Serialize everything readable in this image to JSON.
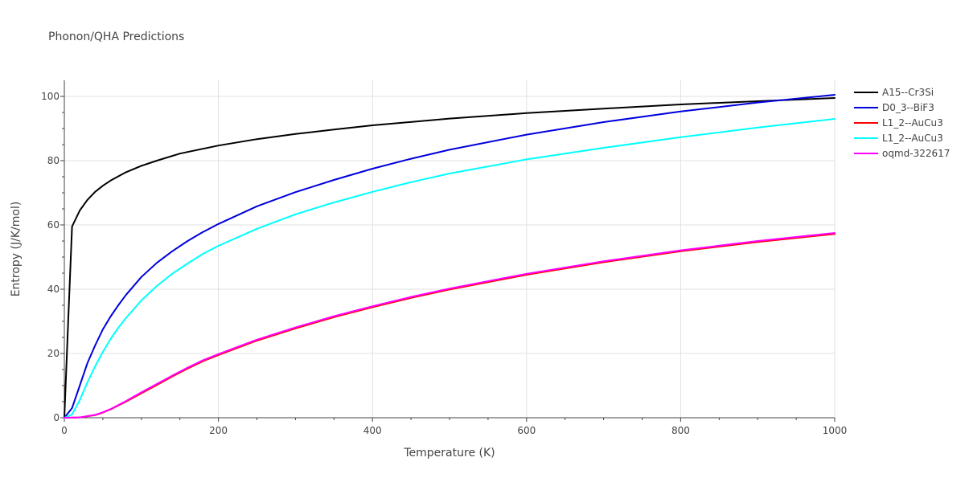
{
  "chart_data": {
    "type": "line",
    "title": "Phonon/QHA Predictions",
    "xlabel": "Temperature (K)",
    "ylabel": "Entropy (J/K/mol)",
    "xlim": [
      0,
      1000
    ],
    "ylim": [
      0,
      105
    ],
    "x_ticks": [
      0,
      200,
      400,
      600,
      800,
      1000
    ],
    "y_ticks": [
      0,
      20,
      40,
      60,
      80,
      100
    ],
    "grid": true,
    "legend_position": "top-right",
    "series": [
      {
        "name": "A15--Cr3Si",
        "color": "#000000",
        "x": [
          0,
          5,
          10,
          20,
          30,
          40,
          50,
          60,
          80,
          100,
          120,
          150,
          200,
          250,
          300,
          350,
          400,
          500,
          600,
          700,
          800,
          900,
          1000
        ],
        "y": [
          0,
          30,
          59.5,
          64.5,
          67.8,
          70.3,
          72.2,
          73.8,
          76.4,
          78.4,
          80,
          82.2,
          84.7,
          86.7,
          88.3,
          89.7,
          91,
          93.1,
          94.8,
          96.2,
          97.5,
          98.5,
          99.5
        ]
      },
      {
        "name": "D0_3--BiF3",
        "color": "#0000dd",
        "x": [
          0,
          10,
          20,
          30,
          40,
          50,
          60,
          70,
          80,
          100,
          120,
          140,
          160,
          180,
          200,
          250,
          300,
          350,
          400,
          450,
          500,
          600,
          700,
          800,
          900,
          1000
        ],
        "y": [
          0,
          3,
          10,
          17,
          22.5,
          27.5,
          31.5,
          35,
          38.2,
          43.8,
          48.2,
          51.8,
          55,
          57.8,
          60.3,
          65.8,
          70.2,
          74,
          77.5,
          80.6,
          83.4,
          88.1,
          92,
          95.3,
          98.1,
          100.5
        ]
      },
      {
        "name": "L1_2--AuCu3",
        "color": "#ff0000",
        "x": [
          0,
          20,
          40,
          50,
          60,
          80,
          100,
          120,
          140,
          160,
          180,
          200,
          250,
          300,
          350,
          400,
          450,
          500,
          600,
          700,
          800,
          900,
          1000
        ],
        "y": [
          0,
          0.1,
          0.8,
          1.6,
          2.6,
          5,
          7.6,
          10.2,
          12.8,
          15.3,
          17.6,
          19.5,
          24,
          27.8,
          31.3,
          34.4,
          37.3,
          39.9,
          44.5,
          48.4,
          51.8,
          54.7,
          57.2
        ]
      },
      {
        "name": "L1_2--AuCu3",
        "color": "#00ffff",
        "x": [
          0,
          10,
          20,
          30,
          40,
          50,
          60,
          70,
          80,
          100,
          120,
          140,
          160,
          180,
          200,
          250,
          300,
          350,
          400,
          450,
          500,
          600,
          700,
          800,
          900,
          1000
        ],
        "y": [
          0,
          1,
          5.5,
          11,
          16,
          20.5,
          24.5,
          28,
          31,
          36.5,
          41,
          44.8,
          48,
          51,
          53.5,
          58.8,
          63.3,
          67,
          70.3,
          73.3,
          76,
          80.4,
          84,
          87.3,
          90.3,
          93
        ]
      },
      {
        "name": "oqmd-322617",
        "color": "#ff00ff",
        "x": [
          0,
          20,
          40,
          50,
          60,
          80,
          100,
          120,
          140,
          160,
          180,
          200,
          250,
          300,
          350,
          400,
          450,
          500,
          600,
          700,
          800,
          900,
          1000
        ],
        "y": [
          0,
          0.1,
          0.9,
          1.7,
          2.7,
          5.2,
          7.9,
          10.5,
          13.1,
          15.6,
          17.9,
          19.8,
          24.3,
          28.1,
          31.6,
          34.7,
          37.6,
          40.2,
          44.8,
          48.7,
          52.1,
          55,
          57.5
        ]
      }
    ]
  }
}
